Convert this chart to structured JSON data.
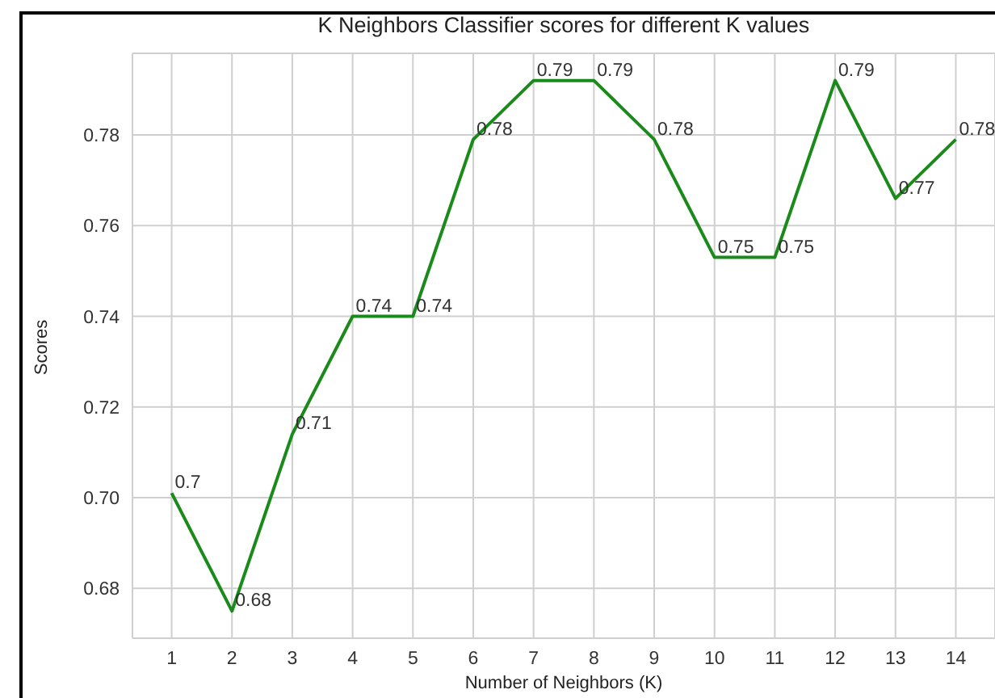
{
  "chart_data": {
    "type": "line",
    "title": "K Neighbors Classifier scores for different K values",
    "xlabel": "Number of Neighbors (K)",
    "ylabel": "Scores",
    "x": [
      1,
      2,
      3,
      4,
      5,
      6,
      7,
      8,
      9,
      10,
      11,
      12,
      13,
      14
    ],
    "series": [
      {
        "color": "#1a8a1a",
        "values": [
          0.701,
          0.675,
          0.714,
          0.74,
          0.74,
          0.779,
          0.792,
          0.792,
          0.779,
          0.753,
          0.753,
          0.792,
          0.766,
          0.779
        ],
        "value_labels": [
          "0.7",
          "0.68",
          "0.71",
          "0.74",
          "0.74",
          "0.78",
          "0.79",
          "0.79",
          "0.78",
          "0.75",
          "0.75",
          "0.79",
          "0.77",
          "0.78"
        ]
      }
    ],
    "xlim": [
      0.35,
      14.65
    ],
    "xticks": [
      1,
      2,
      3,
      4,
      5,
      6,
      7,
      8,
      9,
      10,
      11,
      12,
      13,
      14
    ],
    "ylim": [
      0.669,
      0.798
    ],
    "yticks": [
      {
        "value": 0.68,
        "label": "0.68"
      },
      {
        "value": 0.7,
        "label": "0.70"
      },
      {
        "value": 0.72,
        "label": "0.72"
      },
      {
        "value": 0.74,
        "label": "0.74"
      },
      {
        "value": 0.76,
        "label": "0.76"
      },
      {
        "value": 0.78,
        "label": "0.78"
      }
    ],
    "grid": true,
    "legend": false,
    "marker": "none",
    "line_style": "solid"
  }
}
